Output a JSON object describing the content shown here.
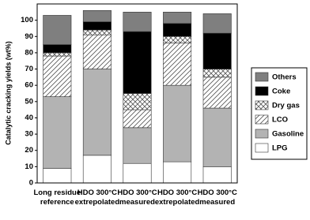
{
  "chart_data": {
    "type": "stacked-bar",
    "y_label": "Catalytic cracking yields (wt%)",
    "categories": [
      "Long residue\nreference",
      "HDO 300°C\nextrepolated",
      "HDO 300°C\nmeasured",
      "HDO 300°C\nextrepolated",
      "HDO 300°C\nmeasured"
    ],
    "series": [
      {
        "name": "LPG",
        "color": "#ffffff",
        "values": [
          9,
          17,
          12,
          13,
          10
        ]
      },
      {
        "name": "Gasoline",
        "color": "#b3b3b3",
        "values": [
          44,
          53,
          22,
          47,
          36
        ]
      },
      {
        "name": "LCO",
        "color": "#ffffff",
        "pattern": "diagonal",
        "values": [
          25,
          21,
          11,
          26,
          19
        ]
      },
      {
        "name": "Dry gas",
        "color": "#ffffff",
        "pattern": "cross",
        "values": [
          2,
          3,
          10,
          4,
          5
        ]
      },
      {
        "name": "Coke",
        "color": "#000000",
        "values": [
          5,
          5,
          38,
          8,
          22
        ]
      },
      {
        "name": "Others",
        "color": "#7f7f7f",
        "values": [
          18,
          7,
          12,
          7,
          12
        ]
      }
    ],
    "ylim": [
      0,
      110
    ],
    "yticks": [
      0,
      10,
      20,
      30,
      40,
      50,
      60,
      70,
      80,
      90,
      100
    ],
    "legend": "right"
  }
}
